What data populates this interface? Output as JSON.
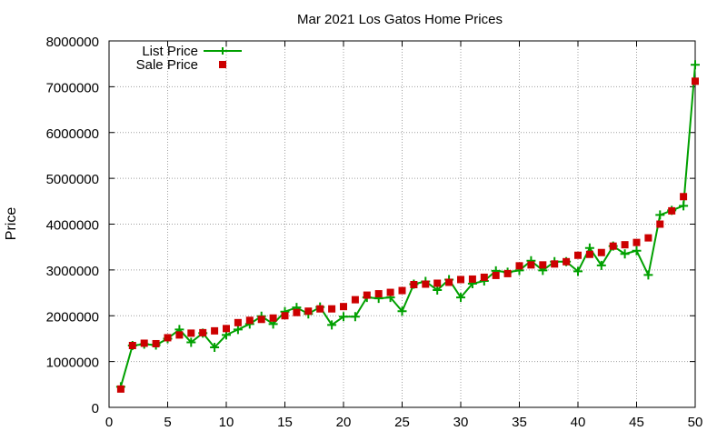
{
  "chart_data": {
    "type": "line",
    "title": "Mar 2021 Los Gatos Home Prices",
    "xlabel": "",
    "ylabel": "Price",
    "xlim": [
      0,
      50
    ],
    "ylim": [
      0,
      8000000
    ],
    "x_ticks": [
      0,
      5,
      10,
      15,
      20,
      25,
      30,
      35,
      40,
      45,
      50
    ],
    "y_ticks": [
      0,
      1000000,
      2000000,
      3000000,
      4000000,
      5000000,
      6000000,
      7000000,
      8000000
    ],
    "x_tick_labels": [
      "0",
      "5",
      "10",
      "15",
      "20",
      "25",
      "30",
      "35",
      "40",
      "45",
      "50"
    ],
    "y_tick_labels": [
      "0",
      "1000000",
      "2000000",
      "3000000",
      "4000000",
      "5000000",
      "6000000",
      "7000000",
      "8000000"
    ],
    "grid": true,
    "legend_position": "top-left",
    "x": [
      1,
      2,
      3,
      4,
      5,
      6,
      7,
      8,
      9,
      10,
      11,
      12,
      13,
      14,
      15,
      16,
      17,
      18,
      19,
      20,
      21,
      22,
      23,
      24,
      25,
      26,
      27,
      28,
      29,
      30,
      31,
      32,
      33,
      34,
      35,
      36,
      37,
      38,
      39,
      40,
      41,
      42,
      43,
      44,
      45,
      46,
      47,
      48,
      49,
      50
    ],
    "series": [
      {
        "name": "List Price",
        "style": "line-cross",
        "color": "#00a000",
        "values": [
          450000,
          1350000,
          1380000,
          1360000,
          1500000,
          1700000,
          1420000,
          1620000,
          1310000,
          1580000,
          1700000,
          1820000,
          1990000,
          1820000,
          2090000,
          2180000,
          2040000,
          2190000,
          1800000,
          1980000,
          1980000,
          2400000,
          2380000,
          2400000,
          2100000,
          2690000,
          2750000,
          2560000,
          2790000,
          2400000,
          2700000,
          2760000,
          2980000,
          2950000,
          2990000,
          3200000,
          2990000,
          3180000,
          3180000,
          2970000,
          3480000,
          3100000,
          3520000,
          3350000,
          3420000,
          2890000,
          4200000,
          4300000,
          4400000,
          7480000
        ]
      },
      {
        "name": "Sale Price",
        "style": "square",
        "color": "#cc0000",
        "values": [
          400000,
          1350000,
          1400000,
          1390000,
          1520000,
          1580000,
          1620000,
          1630000,
          1670000,
          1720000,
          1850000,
          1900000,
          1920000,
          1950000,
          2000000,
          2070000,
          2100000,
          2150000,
          2150000,
          2200000,
          2350000,
          2450000,
          2480000,
          2510000,
          2550000,
          2680000,
          2690000,
          2710000,
          2730000,
          2790000,
          2800000,
          2840000,
          2880000,
          2920000,
          3090000,
          3110000,
          3110000,
          3130000,
          3180000,
          3320000,
          3340000,
          3380000,
          3520000,
          3550000,
          3600000,
          3700000,
          4000000,
          4290000,
          4600000,
          7120000
        ]
      }
    ]
  }
}
